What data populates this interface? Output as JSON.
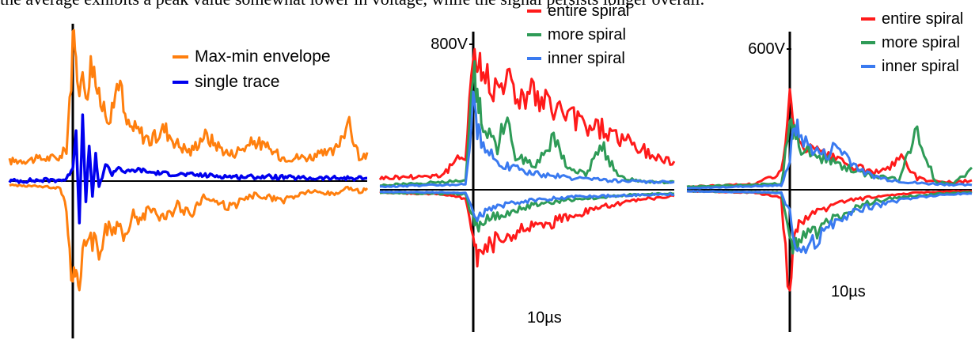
{
  "caption": "the average exhibits a peak value somewhat lower in voltage, while the signal persists longer overall.",
  "colors": {
    "envelope": "#ff7f0e",
    "single": "#0000ee",
    "entire": "#ff1a1a",
    "more": "#2e9b57",
    "inner": "#3a7af0"
  },
  "chart_data": [
    {
      "type": "line",
      "title": "",
      "xlabel": "",
      "ylabel": "",
      "legend": [
        "Max-min envelope",
        "single trace"
      ],
      "legend_position": "top-right",
      "x_unit": "µs",
      "xlim": [
        -10,
        45
      ],
      "ylim": [
        -1.1,
        1.1
      ],
      "series": [
        {
          "name": "Max-min envelope",
          "color": "#ff7f0e",
          "x": [
            -10,
            -2,
            -1,
            0,
            0.5,
            1,
            2,
            3,
            4,
            5,
            6,
            7,
            8,
            9,
            10,
            12,
            14,
            16,
            18,
            20,
            24,
            28,
            32,
            36,
            40,
            42,
            44,
            45
          ],
          "upper": [
            0.15,
            0.18,
            0.25,
            1.0,
            0.9,
            0.78,
            0.7,
            0.92,
            0.6,
            0.55,
            0.5,
            0.82,
            0.45,
            0.4,
            0.38,
            0.3,
            0.4,
            0.28,
            0.22,
            0.35,
            0.2,
            0.3,
            0.18,
            0.18,
            0.22,
            0.45,
            0.15,
            0.2
          ],
          "lower": [
            -0.03,
            -0.05,
            -0.2,
            -0.85,
            -0.6,
            -0.7,
            -0.5,
            -0.45,
            -0.55,
            -0.35,
            -0.4,
            -0.3,
            -0.42,
            -0.25,
            -0.3,
            -0.2,
            -0.3,
            -0.18,
            -0.25,
            -0.12,
            -0.2,
            -0.1,
            -0.15,
            -0.08,
            -0.1,
            -0.05,
            -0.08,
            -0.05
          ]
        },
        {
          "name": "single trace",
          "color": "#0000ee",
          "x": [
            -10,
            -1,
            0,
            0.5,
            1,
            1.5,
            2,
            2.5,
            3,
            3.5,
            4,
            5,
            6,
            7,
            8,
            10,
            12,
            15,
            20,
            25,
            30,
            35,
            40,
            45
          ],
          "values": [
            0.0,
            0.01,
            0.1,
            0.35,
            -0.3,
            0.45,
            -0.15,
            0.25,
            -0.1,
            0.18,
            -0.05,
            0.12,
            0.05,
            0.1,
            0.06,
            0.08,
            0.06,
            0.05,
            0.04,
            0.03,
            0.03,
            0.02,
            0.02,
            0.02
          ]
        }
      ]
    },
    {
      "type": "line",
      "title": "",
      "xlabel": "",
      "ylabel": "",
      "y_tick_label": "800V",
      "x_scale_label": "10µs",
      "legend": [
        "entire spiral",
        "more spiral",
        "inner spiral"
      ],
      "legend_position": "top-right",
      "x_unit": "µs",
      "xlim": [
        -12,
        25
      ],
      "ylim": [
        -900,
        1000
      ],
      "series": [
        {
          "name": "entire spiral",
          "color": "#ff1a1a",
          "x": [
            -12,
            -4,
            -1,
            0,
            0.5,
            1,
            2,
            3,
            4,
            5,
            6,
            7,
            8,
            10,
            12,
            14,
            16,
            18,
            20,
            22,
            24,
            25
          ],
          "upper": [
            80,
            100,
            250,
            950,
            880,
            800,
            760,
            700,
            820,
            650,
            640,
            700,
            600,
            560,
            500,
            440,
            420,
            360,
            300,
            240,
            200,
            180
          ],
          "lower": [
            -20,
            -30,
            -60,
            -300,
            -450,
            -420,
            -380,
            -350,
            -320,
            -300,
            -280,
            -260,
            -250,
            -220,
            -180,
            -150,
            -120,
            -100,
            -80,
            -60,
            -50,
            -40
          ]
        },
        {
          "name": "more spiral",
          "color": "#2e9b57",
          "x": [
            -12,
            -1,
            0,
            0.5,
            1,
            2,
            3,
            4,
            5,
            6,
            8,
            10,
            12,
            14,
            16,
            18,
            20,
            22,
            25
          ],
          "upper": [
            30,
            60,
            900,
            650,
            500,
            380,
            300,
            520,
            250,
            220,
            180,
            350,
            140,
            110,
            300,
            90,
            70,
            60,
            50
          ],
          "lower": [
            -20,
            -30,
            -200,
            -250,
            -220,
            -200,
            -180,
            -160,
            -140,
            -120,
            -100,
            -80,
            -70,
            -60,
            -50,
            -40,
            -35,
            -30,
            -25
          ]
        },
        {
          "name": "inner spiral",
          "color": "#3a7af0",
          "x": [
            -12,
            -1,
            0,
            0.5,
            1,
            2,
            3,
            4,
            5,
            6,
            8,
            10,
            12,
            15,
            18,
            21,
            25
          ],
          "upper": [
            20,
            40,
            600,
            420,
            330,
            250,
            200,
            170,
            150,
            130,
            110,
            95,
            80,
            70,
            60,
            55,
            50
          ],
          "lower": [
            -15,
            -20,
            -150,
            -180,
            -160,
            -140,
            -120,
            -100,
            -90,
            -80,
            -70,
            -60,
            -50,
            -45,
            -40,
            -35,
            -30
          ]
        }
      ]
    },
    {
      "type": "line",
      "title": "",
      "xlabel": "",
      "ylabel": "",
      "y_tick_label": "600V",
      "x_scale_label": "10µs",
      "legend": [
        "entire spiral",
        "more spiral",
        "inner spiral"
      ],
      "legend_position": "top-right",
      "x_unit": "µs",
      "xlim": [
        -12,
        20
      ],
      "ylim": [
        -900,
        1000
      ],
      "series": [
        {
          "name": "entire spiral",
          "color": "#ff1a1a",
          "x": [
            -12,
            -4,
            -1,
            0,
            0.5,
            1,
            2,
            3,
            4,
            5,
            6,
            8,
            10,
            12,
            14,
            16,
            18,
            20
          ],
          "upper": [
            20,
            40,
            120,
            600,
            420,
            330,
            280,
            250,
            230,
            200,
            180,
            140,
            110,
            230,
            80,
            60,
            50,
            60
          ],
          "lower": [
            -10,
            -20,
            -60,
            -750,
            -300,
            -250,
            -200,
            -160,
            -130,
            -100,
            -80,
            -60,
            -40,
            -30,
            -20,
            -15,
            -10,
            -10
          ]
        },
        {
          "name": "more spiral",
          "color": "#2e9b57",
          "x": [
            -12,
            -1,
            0,
            0.5,
            1,
            2,
            3,
            4,
            5,
            6,
            7,
            8,
            10,
            12,
            14,
            16,
            18,
            20
          ],
          "upper": [
            20,
            40,
            450,
            380,
            300,
            260,
            230,
            200,
            180,
            160,
            130,
            110,
            90,
            70,
            400,
            50,
            40,
            140
          ],
          "lower": [
            -10,
            -20,
            -300,
            -400,
            -380,
            -320,
            -280,
            -240,
            -200,
            -160,
            -130,
            -100,
            -70,
            -50,
            -40,
            -30,
            -20,
            -20
          ]
        },
        {
          "name": "inner spiral",
          "color": "#3a7af0",
          "x": [
            -12,
            -1,
            0,
            0.5,
            1,
            2,
            3,
            4,
            5,
            6,
            7,
            8,
            10,
            12,
            14,
            16,
            18,
            20
          ],
          "upper": [
            10,
            30,
            200,
            450,
            380,
            300,
            260,
            230,
            300,
            250,
            180,
            120,
            80,
            60,
            45,
            40,
            35,
            30
          ],
          "lower": [
            -10,
            -20,
            -150,
            -350,
            -420,
            -380,
            -330,
            -280,
            -240,
            -200,
            -160,
            -130,
            -100,
            -70,
            -50,
            -40,
            -30,
            -25
          ]
        }
      ]
    }
  ]
}
